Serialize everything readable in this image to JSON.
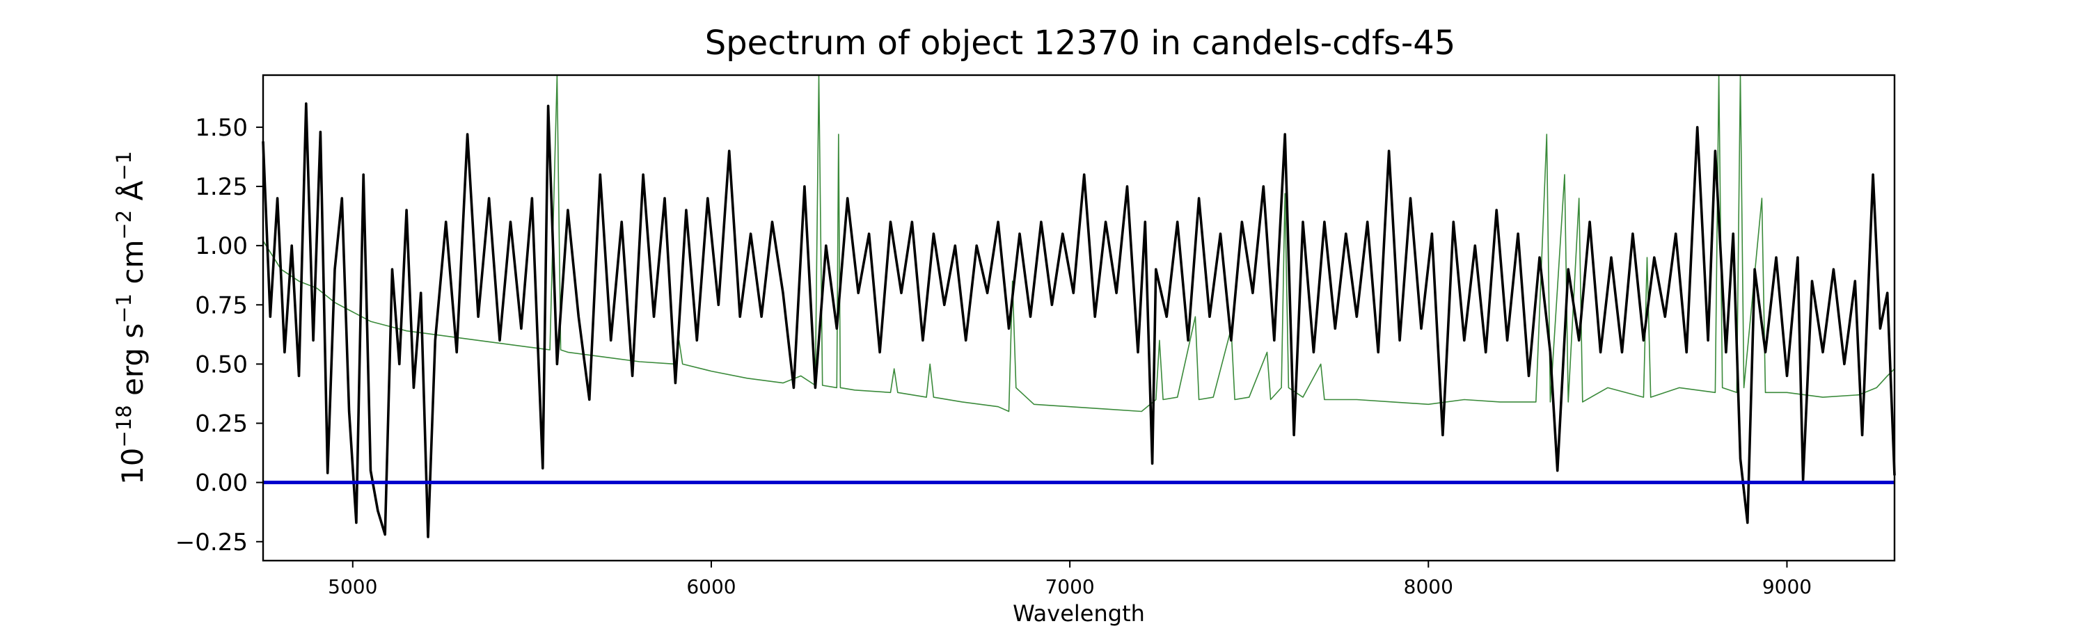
{
  "chart_data": {
    "type": "line",
    "title": "Spectrum of object 12370 in candels-cdfs-45",
    "xlabel": "Wavelength",
    "ylabel": {
      "base": "10",
      "exp": "−18",
      "text1": " erg s",
      "exp2": "−1",
      "text2": " cm",
      "exp3": "−2",
      "text3": " Å",
      "exp4": "−1"
    },
    "xlim": [
      4750,
      9300
    ],
    "ylim": [
      -0.33,
      1.72
    ],
    "xticks": [
      5000,
      6000,
      7000,
      8000,
      9000
    ],
    "xtick_labels": [
      "5000",
      "6000",
      "7000",
      "8000",
      "9000"
    ],
    "yticks": [
      -0.25,
      0,
      0.25,
      0.5,
      0.75,
      1.0,
      1.25,
      1.5
    ],
    "ytick_labels": [
      "−0.25",
      "0.00",
      "0.25",
      "0.50",
      "0.75",
      "1.00",
      "1.25",
      "1.50"
    ],
    "grid": false,
    "series": [
      {
        "role": "flux",
        "color": "#000000",
        "points": [
          [
            4750,
            1.44
          ],
          [
            4770,
            0.7
          ],
          [
            4790,
            1.2
          ],
          [
            4810,
            0.55
          ],
          [
            4830,
            1.0
          ],
          [
            4850,
            0.45
          ],
          [
            4870,
            1.6
          ],
          [
            4890,
            0.6
          ],
          [
            4910,
            1.48
          ],
          [
            4930,
            0.04
          ],
          [
            4950,
            0.9
          ],
          [
            4970,
            1.2
          ],
          [
            4990,
            0.3
          ],
          [
            5010,
            -0.17
          ],
          [
            5030,
            1.3
          ],
          [
            5050,
            0.05
          ],
          [
            5070,
            -0.12
          ],
          [
            5090,
            -0.22
          ],
          [
            5110,
            0.9
          ],
          [
            5130,
            0.5
          ],
          [
            5150,
            1.15
          ],
          [
            5170,
            0.4
          ],
          [
            5190,
            0.8
          ],
          [
            5210,
            -0.23
          ],
          [
            5230,
            0.6
          ],
          [
            5260,
            1.1
          ],
          [
            5290,
            0.55
          ],
          [
            5320,
            1.47
          ],
          [
            5350,
            0.7
          ],
          [
            5380,
            1.2
          ],
          [
            5410,
            0.6
          ],
          [
            5440,
            1.1
          ],
          [
            5470,
            0.65
          ],
          [
            5500,
            1.2
          ],
          [
            5530,
            0.06
          ],
          [
            5545,
            1.59
          ],
          [
            5570,
            0.5
          ],
          [
            5600,
            1.15
          ],
          [
            5630,
            0.7
          ],
          [
            5660,
            0.35
          ],
          [
            5690,
            1.3
          ],
          [
            5720,
            0.6
          ],
          [
            5750,
            1.1
          ],
          [
            5780,
            0.45
          ],
          [
            5810,
            1.3
          ],
          [
            5840,
            0.7
          ],
          [
            5870,
            1.2
          ],
          [
            5900,
            0.42
          ],
          [
            5930,
            1.15
          ],
          [
            5960,
            0.6
          ],
          [
            5990,
            1.2
          ],
          [
            6020,
            0.75
          ],
          [
            6050,
            1.4
          ],
          [
            6080,
            0.7
          ],
          [
            6110,
            1.05
          ],
          [
            6140,
            0.7
          ],
          [
            6170,
            1.1
          ],
          [
            6200,
            0.8
          ],
          [
            6230,
            0.4
          ],
          [
            6260,
            1.25
          ],
          [
            6290,
            0.4
          ],
          [
            6320,
            1.0
          ],
          [
            6350,
            0.65
          ],
          [
            6380,
            1.2
          ],
          [
            6410,
            0.8
          ],
          [
            6440,
            1.05
          ],
          [
            6470,
            0.55
          ],
          [
            6500,
            1.1
          ],
          [
            6530,
            0.8
          ],
          [
            6560,
            1.1
          ],
          [
            6590,
            0.6
          ],
          [
            6620,
            1.05
          ],
          [
            6650,
            0.75
          ],
          [
            6680,
            1.0
          ],
          [
            6710,
            0.6
          ],
          [
            6740,
            1.0
          ],
          [
            6770,
            0.8
          ],
          [
            6800,
            1.1
          ],
          [
            6830,
            0.65
          ],
          [
            6860,
            1.05
          ],
          [
            6890,
            0.7
          ],
          [
            6920,
            1.1
          ],
          [
            6950,
            0.75
          ],
          [
            6980,
            1.05
          ],
          [
            7010,
            0.8
          ],
          [
            7040,
            1.3
          ],
          [
            7070,
            0.7
          ],
          [
            7100,
            1.1
          ],
          [
            7130,
            0.8
          ],
          [
            7160,
            1.25
          ],
          [
            7190,
            0.55
          ],
          [
            7210,
            1.1
          ],
          [
            7230,
            0.08
          ],
          [
            7240,
            0.9
          ],
          [
            7270,
            0.7
          ],
          [
            7300,
            1.1
          ],
          [
            7330,
            0.6
          ],
          [
            7360,
            1.2
          ],
          [
            7390,
            0.7
          ],
          [
            7420,
            1.05
          ],
          [
            7450,
            0.6
          ],
          [
            7480,
            1.1
          ],
          [
            7510,
            0.8
          ],
          [
            7540,
            1.25
          ],
          [
            7570,
            0.6
          ],
          [
            7600,
            1.47
          ],
          [
            7625,
            0.2
          ],
          [
            7650,
            1.1
          ],
          [
            7680,
            0.55
          ],
          [
            7710,
            1.1
          ],
          [
            7740,
            0.65
          ],
          [
            7770,
            1.05
          ],
          [
            7800,
            0.7
          ],
          [
            7830,
            1.1
          ],
          [
            7860,
            0.55
          ],
          [
            7890,
            1.4
          ],
          [
            7920,
            0.6
          ],
          [
            7950,
            1.2
          ],
          [
            7980,
            0.65
          ],
          [
            8010,
            1.05
          ],
          [
            8040,
            0.2
          ],
          [
            8070,
            1.1
          ],
          [
            8100,
            0.6
          ],
          [
            8130,
            1.0
          ],
          [
            8160,
            0.55
          ],
          [
            8190,
            1.15
          ],
          [
            8220,
            0.6
          ],
          [
            8250,
            1.05
          ],
          [
            8280,
            0.45
          ],
          [
            8310,
            0.95
          ],
          [
            8340,
            0.55
          ],
          [
            8360,
            0.05
          ],
          [
            8390,
            0.9
          ],
          [
            8420,
            0.6
          ],
          [
            8450,
            1.1
          ],
          [
            8480,
            0.55
          ],
          [
            8510,
            0.95
          ],
          [
            8540,
            0.55
          ],
          [
            8570,
            1.05
          ],
          [
            8600,
            0.6
          ],
          [
            8630,
            0.95
          ],
          [
            8660,
            0.7
          ],
          [
            8690,
            1.05
          ],
          [
            8720,
            0.55
          ],
          [
            8750,
            1.5
          ],
          [
            8780,
            0.6
          ],
          [
            8800,
            1.4
          ],
          [
            8830,
            0.55
          ],
          [
            8850,
            1.05
          ],
          [
            8870,
            0.1
          ],
          [
            8890,
            -0.17
          ],
          [
            8910,
            0.9
          ],
          [
            8940,
            0.55
          ],
          [
            8970,
            0.95
          ],
          [
            9000,
            0.45
          ],
          [
            9030,
            0.95
          ],
          [
            9045,
            0.01
          ],
          [
            9070,
            0.85
          ],
          [
            9100,
            0.55
          ],
          [
            9130,
            0.9
          ],
          [
            9160,
            0.5
          ],
          [
            9190,
            0.85
          ],
          [
            9210,
            0.2
          ],
          [
            9240,
            1.3
          ],
          [
            9260,
            0.65
          ],
          [
            9280,
            0.8
          ],
          [
            9300,
            0.03
          ]
        ]
      },
      {
        "role": "contamination",
        "color": "#3a8a3a",
        "points": [
          [
            4750,
            1.02
          ],
          [
            4800,
            0.9
          ],
          [
            4850,
            0.85
          ],
          [
            4900,
            0.82
          ],
          [
            4950,
            0.76
          ],
          [
            5000,
            0.72
          ],
          [
            5050,
            0.68
          ],
          [
            5100,
            0.66
          ],
          [
            5150,
            0.64
          ],
          [
            5200,
            0.63
          ],
          [
            5300,
            0.61
          ],
          [
            5400,
            0.59
          ],
          [
            5500,
            0.57
          ],
          [
            5550,
            0.56
          ],
          [
            5570,
            1.72
          ],
          [
            5580,
            0.56
          ],
          [
            5600,
            0.55
          ],
          [
            5700,
            0.53
          ],
          [
            5800,
            0.51
          ],
          [
            5900,
            0.5
          ],
          [
            5910,
            0.6
          ],
          [
            5920,
            0.5
          ],
          [
            6000,
            0.47
          ],
          [
            6100,
            0.44
          ],
          [
            6200,
            0.42
          ],
          [
            6250,
            0.45
          ],
          [
            6290,
            0.41
          ],
          [
            6300,
            1.72
          ],
          [
            6310,
            0.41
          ],
          [
            6350,
            0.4
          ],
          [
            6355,
            1.47
          ],
          [
            6360,
            0.4
          ],
          [
            6400,
            0.39
          ],
          [
            6500,
            0.38
          ],
          [
            6510,
            0.48
          ],
          [
            6520,
            0.38
          ],
          [
            6600,
            0.36
          ],
          [
            6610,
            0.5
          ],
          [
            6620,
            0.36
          ],
          [
            6700,
            0.34
          ],
          [
            6800,
            0.32
          ],
          [
            6830,
            0.3
          ],
          [
            6840,
            0.85
          ],
          [
            6850,
            0.4
          ],
          [
            6900,
            0.33
          ],
          [
            7000,
            0.32
          ],
          [
            7100,
            0.31
          ],
          [
            7200,
            0.3
          ],
          [
            7240,
            0.35
          ],
          [
            7250,
            0.6
          ],
          [
            7260,
            0.35
          ],
          [
            7300,
            0.36
          ],
          [
            7350,
            0.7
          ],
          [
            7360,
            0.35
          ],
          [
            7400,
            0.36
          ],
          [
            7450,
            0.65
          ],
          [
            7460,
            0.35
          ],
          [
            7500,
            0.36
          ],
          [
            7550,
            0.55
          ],
          [
            7560,
            0.35
          ],
          [
            7590,
            0.4
          ],
          [
            7600,
            1.22
          ],
          [
            7610,
            0.4
          ],
          [
            7650,
            0.36
          ],
          [
            7700,
            0.5
          ],
          [
            7710,
            0.35
          ],
          [
            7800,
            0.35
          ],
          [
            7900,
            0.34
          ],
          [
            8000,
            0.33
          ],
          [
            8100,
            0.35
          ],
          [
            8200,
            0.34
          ],
          [
            8300,
            0.34
          ],
          [
            8330,
            1.47
          ],
          [
            8340,
            0.34
          ],
          [
            8380,
            1.3
          ],
          [
            8390,
            0.34
          ],
          [
            8420,
            1.2
          ],
          [
            8430,
            0.34
          ],
          [
            8500,
            0.4
          ],
          [
            8600,
            0.36
          ],
          [
            8610,
            0.95
          ],
          [
            8620,
            0.36
          ],
          [
            8700,
            0.4
          ],
          [
            8800,
            0.38
          ],
          [
            8810,
            1.72
          ],
          [
            8820,
            0.4
          ],
          [
            8860,
            0.38
          ],
          [
            8870,
            1.72
          ],
          [
            8880,
            0.4
          ],
          [
            8930,
            1.2
          ],
          [
            8940,
            0.38
          ],
          [
            9000,
            0.38
          ],
          [
            9100,
            0.36
          ],
          [
            9200,
            0.37
          ],
          [
            9250,
            0.4
          ],
          [
            9280,
            0.45
          ],
          [
            9300,
            0.48
          ]
        ]
      },
      {
        "role": "zero",
        "color": "#0000cc",
        "points": [
          [
            4750,
            0.0
          ],
          [
            9300,
            0.0
          ]
        ]
      }
    ]
  }
}
